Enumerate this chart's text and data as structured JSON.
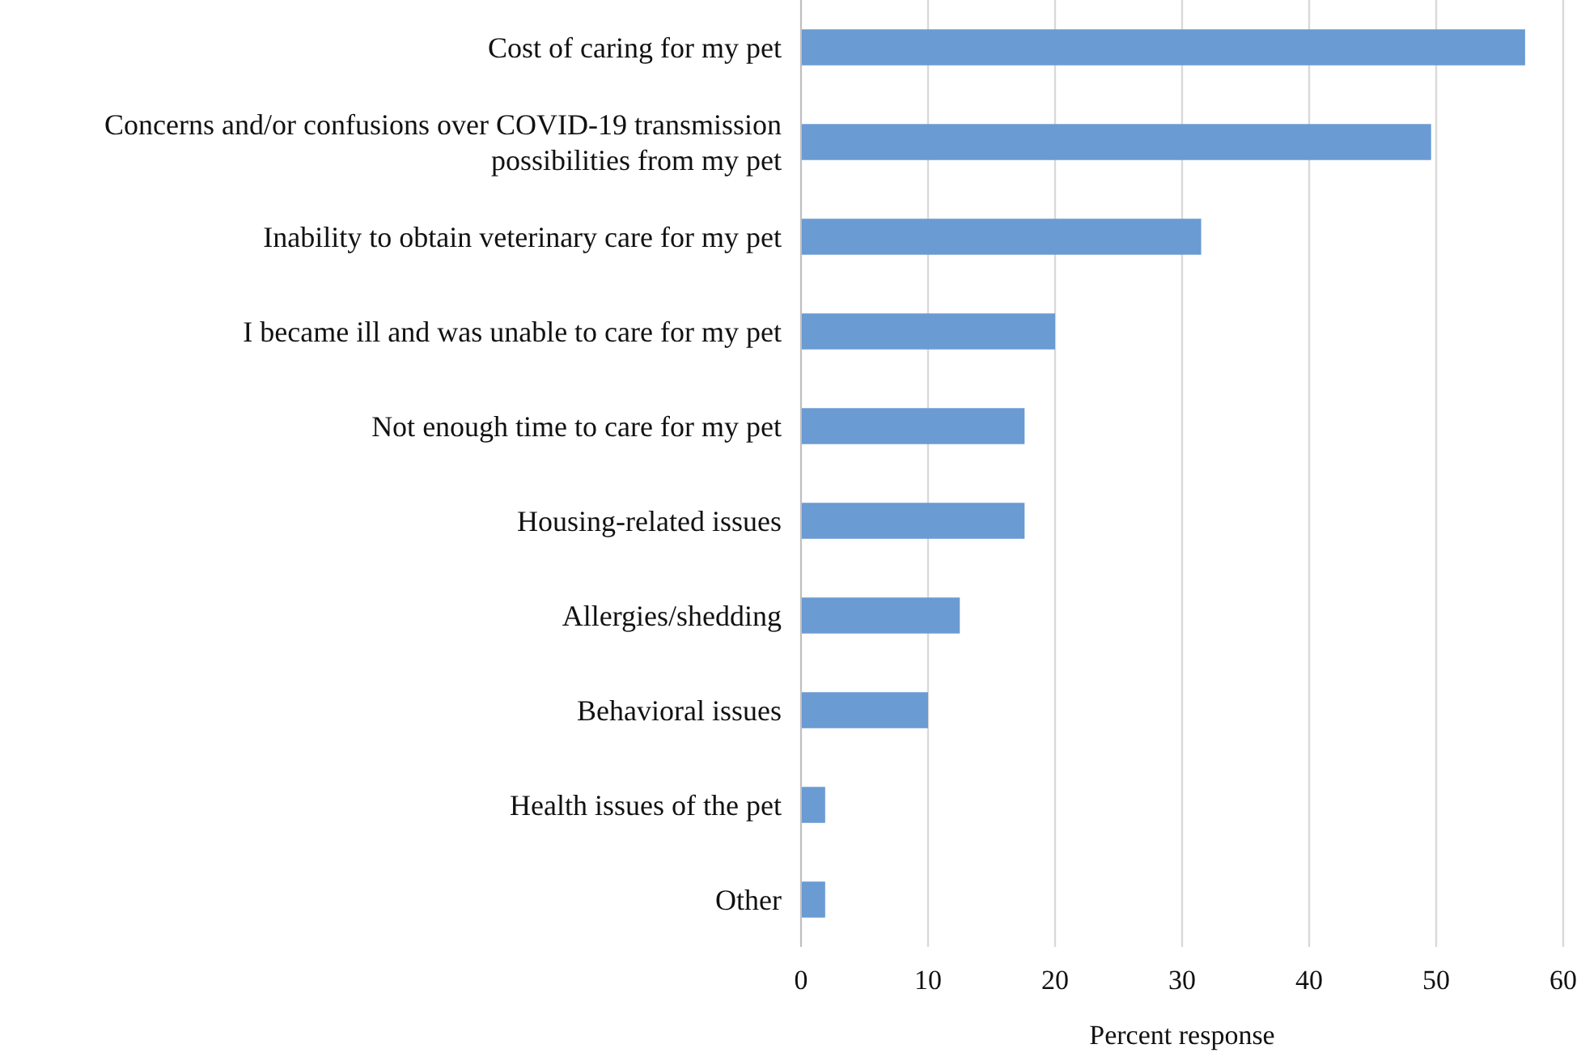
{
  "chart_data": {
    "type": "bar",
    "orientation": "horizontal",
    "xlabel": "Percent response",
    "categories": [
      "Cost of caring for my pet",
      "Concerns and/or confusions over COVID-19 transmission possibilities from my pet",
      "Inability to obtain veterinary care for my pet",
      "I became ill and was unable to care for my pet",
      "Not enough time to care for my pet",
      "Housing-related issues",
      "Allergies/shedding",
      "Behavioral issues",
      "Health issues of the pet",
      "Other"
    ],
    "values": [
      57,
      49.6,
      31.5,
      20,
      17.6,
      17.6,
      12.5,
      10,
      1.9,
      1.9
    ],
    "color": "#6a9bd3",
    "xlim": [
      0,
      60
    ],
    "xticks": [
      0,
      10,
      20,
      30,
      40,
      50,
      60
    ],
    "grid": "x"
  }
}
